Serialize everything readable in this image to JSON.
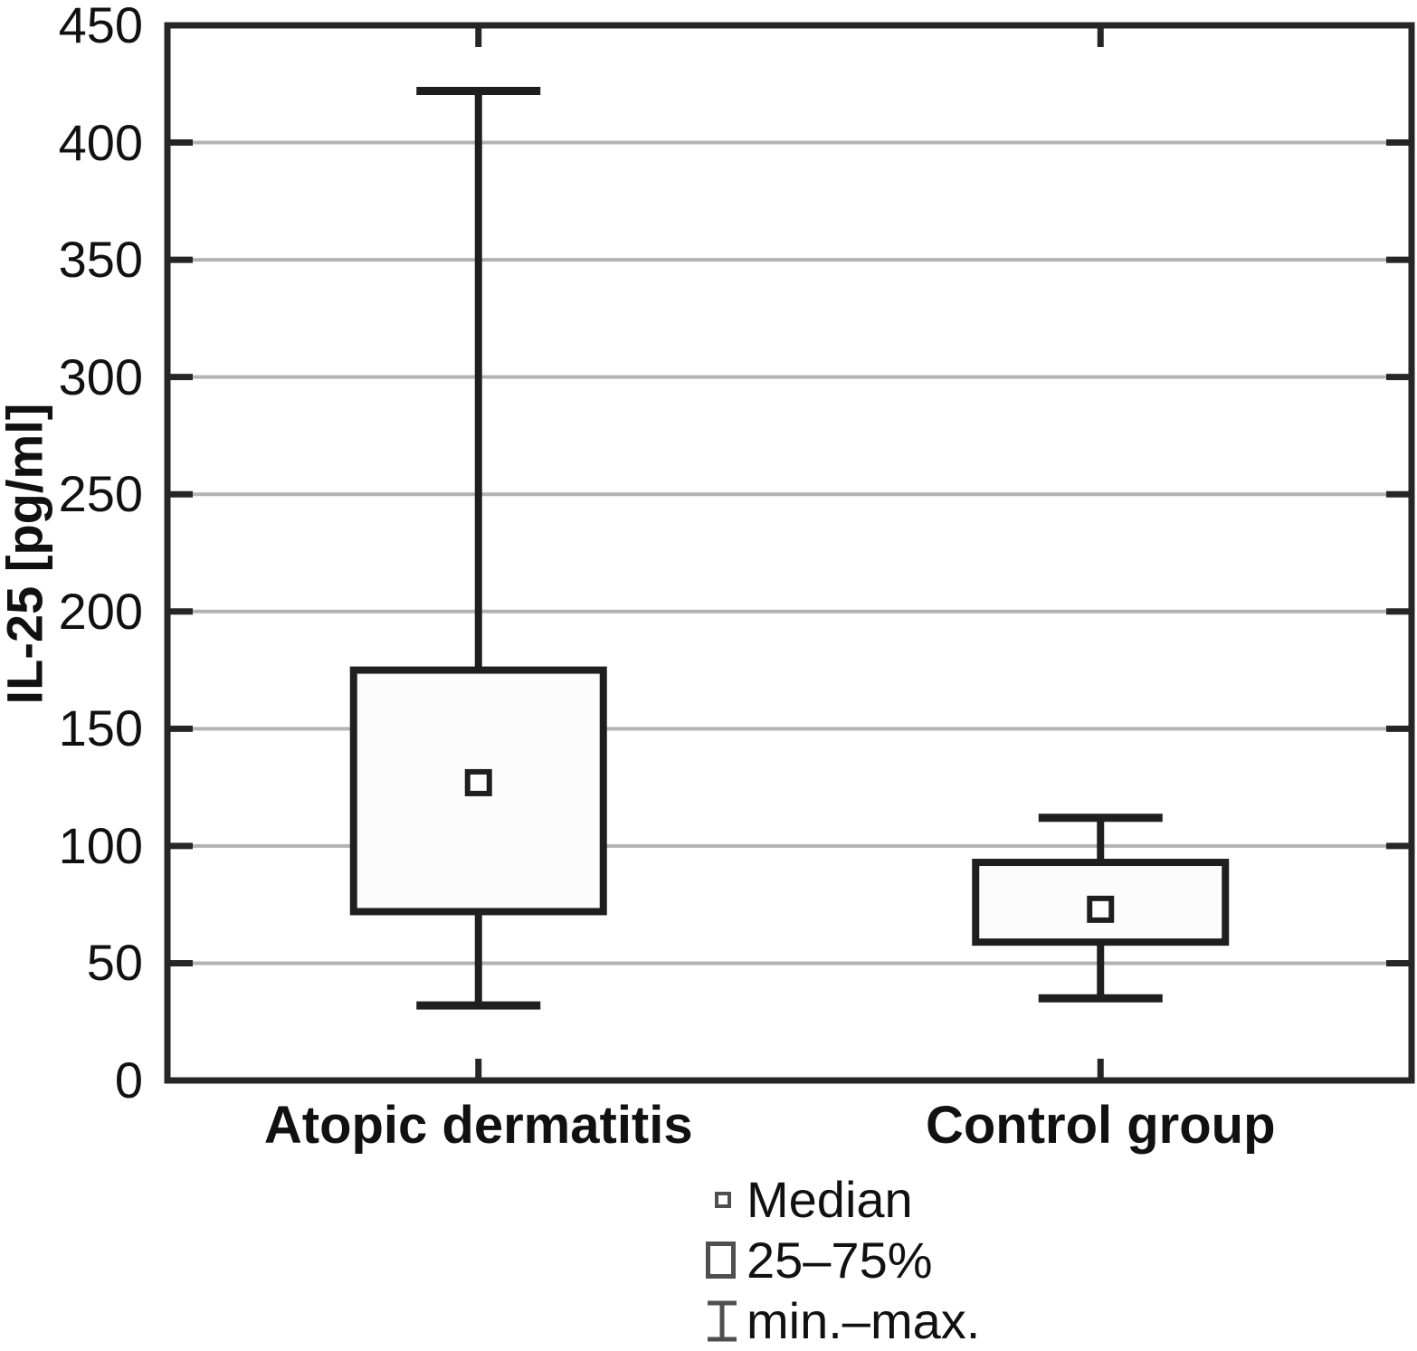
{
  "chart_data": {
    "type": "box",
    "title": "",
    "ylabel": "IL-25 [pg/ml]",
    "xlabel": "",
    "ylim": [
      0,
      450
    ],
    "yticks": [
      0,
      50,
      100,
      150,
      200,
      250,
      300,
      350,
      400,
      450
    ],
    "grid": "horizontal",
    "legend_position": "bottom",
    "categories": [
      "Atopic dermatitis",
      "Control group"
    ],
    "series": [
      {
        "name": "Atopic dermatitis",
        "min": 32,
        "q1": 72,
        "median": 127,
        "q3": 175,
        "max": 422
      },
      {
        "name": "Control group",
        "min": 35,
        "q1": 59,
        "median": 73,
        "q3": 93,
        "max": 112
      }
    ],
    "legend": {
      "items": [
        {
          "symbol": "median-square",
          "label": "Median"
        },
        {
          "symbol": "iqr-box",
          "label": "25–75%"
        },
        {
          "symbol": "min-max-whisker",
          "label": "min.–max."
        }
      ]
    }
  },
  "colors": {
    "axis": "#262626",
    "grid": "#b3b3b3",
    "box_stroke": "#1f1f1f",
    "box_fill": "#fcfcfc",
    "median_fill": "#ffffff",
    "legend_symbol": "#4f4f4f",
    "text": "#111111"
  }
}
